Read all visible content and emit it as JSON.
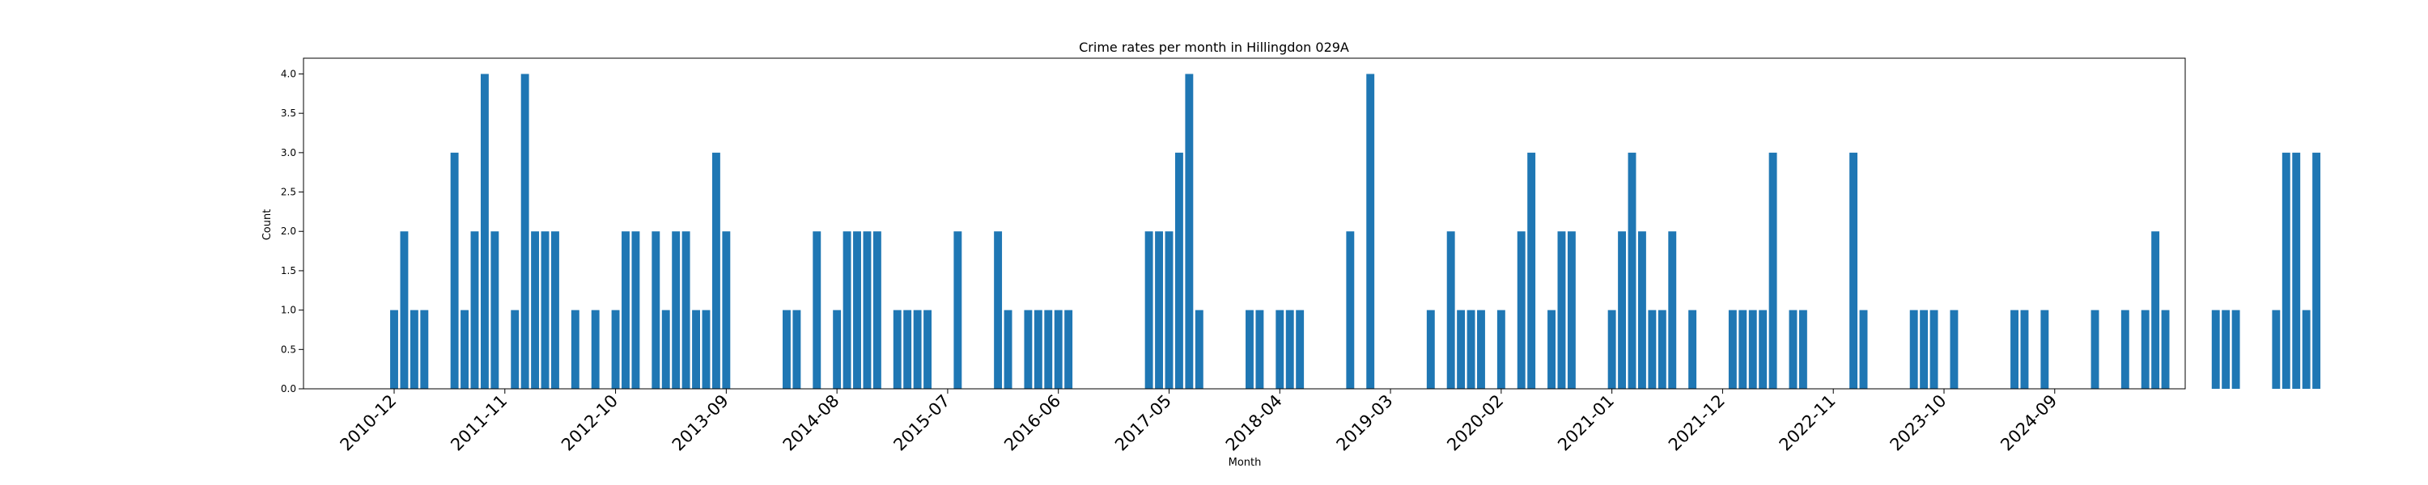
{
  "chart_data": {
    "type": "bar",
    "title": "Crime rates per month in Hillingdon 029A",
    "xlabel": "Month",
    "ylabel": "Count",
    "ylim": [
      0,
      4.2
    ],
    "yticks": [
      "0.0",
      "0.5",
      "1.0",
      "1.5",
      "2.0",
      "2.5",
      "3.0",
      "3.5",
      "4.0"
    ],
    "xtick_labels": [
      "2010-12",
      "2011-11",
      "2012-10",
      "2013-09",
      "2014-08",
      "2015-07",
      "2016-06",
      "2017-05",
      "2018-04",
      "2019-03",
      "2020-02",
      "2021-01",
      "2021-12",
      "2022-11",
      "2023-10",
      "2024-09"
    ],
    "x_start": "2010-12",
    "values": [
      1,
      2,
      1,
      1,
      0,
      0,
      3,
      1,
      2,
      4,
      2,
      0,
      1,
      4,
      2,
      2,
      2,
      0,
      1,
      0,
      1,
      0,
      1,
      2,
      2,
      0,
      2,
      1,
      2,
      2,
      1,
      1,
      3,
      2,
      0,
      0,
      0,
      0,
      0,
      1,
      1,
      0,
      2,
      0,
      1,
      2,
      2,
      2,
      2,
      0,
      1,
      1,
      1,
      1,
      0,
      0,
      2,
      0,
      0,
      0,
      2,
      1,
      0,
      1,
      1,
      1,
      1,
      1,
      0,
      0,
      0,
      0,
      0,
      0,
      0,
      2,
      2,
      2,
      3,
      4,
      1,
      0,
      0,
      0,
      0,
      1,
      1,
      0,
      1,
      1,
      1,
      0,
      0,
      0,
      0,
      2,
      0,
      4,
      0,
      0,
      0,
      0,
      0,
      1,
      0,
      2,
      1,
      1,
      1,
      0,
      1,
      0,
      2,
      3,
      0,
      1,
      2,
      2,
      0,
      0,
      0,
      1,
      2,
      3,
      2,
      1,
      1,
      2,
      0,
      1,
      0,
      0,
      0,
      1,
      1,
      1,
      1,
      3,
      0,
      1,
      1,
      0,
      0,
      0,
      0,
      3,
      1,
      0,
      0,
      0,
      0,
      1,
      1,
      1,
      0,
      1,
      0,
      0,
      0,
      0,
      0,
      1,
      1,
      0,
      1,
      0,
      0,
      0,
      0,
      1,
      0,
      0,
      1,
      0,
      1,
      2,
      1,
      0,
      0,
      0,
      0,
      1,
      1,
      1,
      0,
      0,
      0,
      1,
      3,
      3,
      1,
      3
    ],
    "bar_color": "#1f77b4",
    "grid": false,
    "legend": "none"
  }
}
